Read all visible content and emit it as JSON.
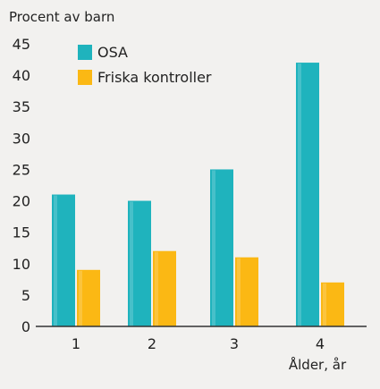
{
  "colors": {
    "background": "#f2f1ef",
    "osa": "#1fb3bd",
    "kontroll": "#fbb814",
    "axis": "#333333"
  },
  "chart_data": {
    "type": "bar",
    "ylabel": "Procent av barn",
    "xlabel": "Ålder, år",
    "categories": [
      "1",
      "2",
      "3",
      "4"
    ],
    "yticks": [
      "0",
      "5",
      "10",
      "15",
      "20",
      "25",
      "30",
      "35",
      "40",
      "45"
    ],
    "ylim": [
      0,
      45
    ],
    "grid": false,
    "legend_position": "top-left",
    "series": [
      {
        "name": "OSA",
        "values": [
          21,
          20,
          25,
          42
        ],
        "color": "#1fb3bd"
      },
      {
        "name": "Friska kontroller",
        "values": [
          9,
          12,
          11,
          7
        ],
        "color": "#fbb814"
      }
    ]
  }
}
